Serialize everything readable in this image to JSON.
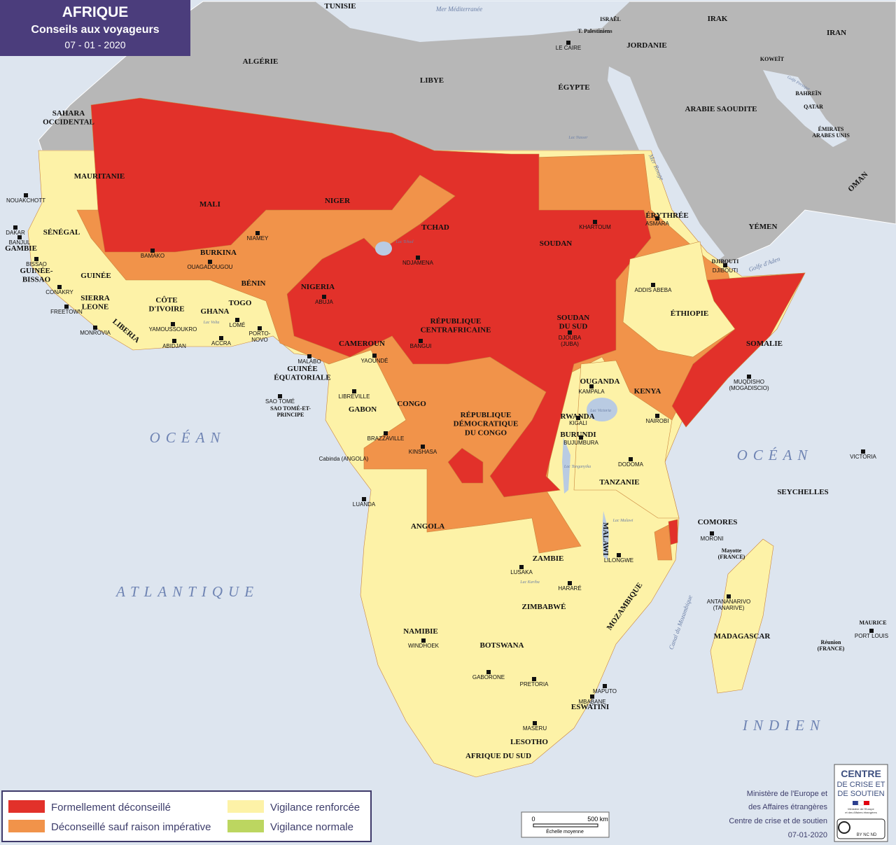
{
  "header": {
    "title": "AFRIQUE",
    "subtitle": "Conseils aux voyageurs",
    "date": "07 - 01 - 2020"
  },
  "legend": [
    {
      "label": "Formellement déconseillé",
      "color": "#e2312a"
    },
    {
      "label": "Déconseillé sauf raison impérative",
      "color": "#f1934a"
    },
    {
      "label": "Vigilance renforcée",
      "color": "#fdf2a7"
    },
    {
      "label": "Vigilance normale",
      "color": "#bcd660"
    }
  ],
  "countries": [
    "TUNISIE",
    "ALGÉRIE",
    "LIBYE",
    "ÉGYPTE",
    "ISRAËL",
    "T. Palestiniens",
    "JORDANIE",
    "IRAK",
    "IRAN",
    "KOWEÏT",
    "BAHREÏN",
    "QATAR",
    [
      "ÉMIRATS",
      "ARABES UNIS"
    ],
    "ARABIE SAOUDITE",
    "OMAN",
    "YÉMEN",
    [
      "SAHARA",
      "OCCIDENTAL"
    ],
    "MAURITANIE",
    "MALI",
    "NIGER",
    "TCHAD",
    "SOUDAN",
    "ÉRYTHRÉE",
    "DJIBOUTI",
    "SÉNÉGAL",
    "GAMBIE",
    [
      "GUINÉE-",
      "BISSAO"
    ],
    "GUINÉE",
    [
      "SIERRA",
      "LEONE"
    ],
    "LIBERIA",
    [
      "CÔTE",
      "D'IVOIRE"
    ],
    "BURKINA",
    "GHANA",
    "TOGO",
    "BÉNIN",
    "NIGERIA",
    "CAMEROUN",
    [
      "RÉPUBLIQUE",
      "CENTRAFRICAINE"
    ],
    [
      "SOUDAN",
      "DU SUD"
    ],
    "ÉTHIOPIE",
    "SOMALIE",
    [
      "GUINÉE",
      "ÉQUATORIALE"
    ],
    "GABON",
    "CONGO",
    [
      "RÉPUBLIQUE",
      "DÉMOCRATIQUE",
      "DU CONGO"
    ],
    "OUGANDA",
    "KENYA",
    "RWANDA",
    "BURUNDI",
    "TANZANIE",
    "SEYCHELLES",
    "ANGOLA",
    "COMORES",
    "ZAMBIE",
    "MALAWI",
    "MOZAMBIQUE",
    "ZIMBABWÉ",
    "NAMIBIE",
    "BOTSWANA",
    "MADAGASCAR",
    "ESWATINI",
    "LESOTHO",
    "AFRIQUE DU SUD",
    [
      "Mayotte",
      "(FRANCE)"
    ],
    [
      "Réunion",
      "(FRANCE)"
    ],
    "MAURICE",
    [
      "SAO TOMÉ-ET-",
      "PRINCIPE"
    ]
  ],
  "capitals": [
    "NOUAKCHOTT",
    "DAKAR",
    "BANJUL",
    "BISSAO",
    "CONAKRY",
    "FREETOWN",
    "MONROVIA",
    "BAMAKO",
    "OUAGADOUGOU",
    "NIAMEY",
    "YAMOUSSOUKRO",
    "ABIDJAN",
    "ACCRA",
    "LOMÉ",
    [
      "PORTO-",
      "NOVO"
    ],
    "ABUJA",
    "NDJAMENA",
    "KHARTOUM",
    "ASMARA",
    "DJIBOUTI",
    "ADDIS ABEBA",
    "LE CAIRE",
    "MALABO",
    "YAOUNDÉ",
    "BANGUI",
    [
      "DJOUBA",
      "(JUBA)"
    ],
    "LIBREVILLE",
    "SAO TOMÉ",
    "BRAZZAVILLE",
    "KINSHASA",
    "KAMPALA",
    "KIGALI",
    "BUJUMBURA",
    "NAIROBI",
    [
      "MUQDISHO",
      "(MOGADISCIO)"
    ],
    "VICTORIA",
    "DODOMA",
    "MORONI",
    "LUANDA",
    "LUSAKA",
    "LILONGWE",
    "HARARÉ",
    [
      "ANTANANARIVO",
      "(TANARIVE)"
    ],
    "PORT LOUIS",
    "WINDHOEK",
    "GABORONE",
    "PRETORIA",
    "MAPUTO",
    "MBABANE",
    "MASERU",
    "Cabinda (ANGOLA)"
  ],
  "waters": [
    "Mer Méditerranée",
    "Golfe Persique",
    "Mer Rouge",
    "Golfe d'Aden",
    "OCÉAN",
    "ATLANTIQUE",
    "OCÉAN",
    "INDIEN",
    "Canal du Mozambique",
    "Lac Tchad",
    "Lac Nasser",
    "Lac Volta",
    "Lac Victoria",
    "Lac Tanganyika",
    "Lac Malawi",
    "Lac Kariba"
  ],
  "scale": {
    "start": "0",
    "end": "500 km",
    "caption": "Échelle moyenne"
  },
  "logo": {
    "lines": [
      "CENTRE",
      "DE CRISE ET",
      "DE SOUTIEN"
    ],
    "ministry": [
      "Ministère de l'Europe",
      "et des Affaires étrangères"
    ],
    "license": "BY NC ND"
  },
  "credits": [
    "Ministère de l'Europe et",
    "des Affaires étrangères",
    "Centre de crise et de soutien",
    "07-01-2020"
  ]
}
